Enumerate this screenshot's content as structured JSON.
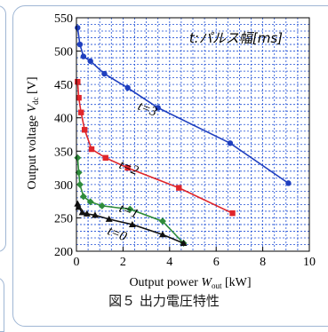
{
  "caption": "図５ 出力電圧特性",
  "chart_data": {
    "type": "line",
    "legend_title": "t:パルス幅[ms]",
    "xlabel_main": "Output power ",
    "xlabel_var": "W",
    "xlabel_sub": "out",
    "xlabel_unit": " [kW]",
    "ylabel_main": "Output voltage ",
    "ylabel_var": "V",
    "ylabel_sub": "dc",
    "ylabel_unit": " [V]",
    "xlim": [
      0,
      10
    ],
    "ylim": [
      200,
      550
    ],
    "xticks": [
      0,
      2,
      4,
      6,
      8,
      10
    ],
    "yticks": [
      200,
      250,
      300,
      350,
      400,
      450,
      500,
      550
    ],
    "grid": true,
    "series": [
      {
        "name": "t=3",
        "color": "#1f3fbf",
        "marker": "circle",
        "points": [
          [
            0.05,
            535
          ],
          [
            0.15,
            510
          ],
          [
            0.3,
            492
          ],
          [
            0.6,
            485
          ],
          [
            1.2,
            466
          ],
          [
            2.2,
            445
          ],
          [
            3.5,
            415
          ],
          [
            6.6,
            362
          ],
          [
            9.1,
            302
          ]
        ]
      },
      {
        "name": "t=2",
        "color": "#e0262b",
        "marker": "square",
        "points": [
          [
            0.05,
            454
          ],
          [
            0.1,
            430
          ],
          [
            0.2,
            408
          ],
          [
            0.35,
            382
          ],
          [
            0.65,
            353
          ],
          [
            1.25,
            340
          ],
          [
            2.2,
            325
          ],
          [
            4.4,
            295
          ],
          [
            6.7,
            257
          ]
        ]
      },
      {
        "name": "t=1",
        "color": "#2e8b3a",
        "marker": "diamond",
        "points": [
          [
            0.05,
            340
          ],
          [
            0.1,
            318
          ],
          [
            0.15,
            300
          ],
          [
            0.3,
            282
          ],
          [
            0.6,
            274
          ],
          [
            1.1,
            268
          ],
          [
            2.3,
            263
          ],
          [
            3.7,
            245
          ],
          [
            4.6,
            212
          ]
        ]
      },
      {
        "name": "t=0",
        "color": "#111111",
        "marker": "triangle",
        "points": [
          [
            0.05,
            271
          ],
          [
            0.1,
            266
          ],
          [
            0.25,
            258
          ],
          [
            0.45,
            256
          ],
          [
            0.8,
            254
          ],
          [
            1.4,
            248
          ],
          [
            2.4,
            240
          ],
          [
            3.7,
            225
          ],
          [
            4.6,
            212
          ]
        ]
      }
    ],
    "annotations": [
      {
        "text": "t=3",
        "x": 2.6,
        "y": 413,
        "rotate": 22
      },
      {
        "text": "t=2",
        "x": 1.8,
        "y": 325,
        "rotate": 22
      },
      {
        "text": "t=1",
        "x": 1.8,
        "y": 260,
        "rotate": 22
      },
      {
        "text": "t=0",
        "x": 1.3,
        "y": 226,
        "rotate": 22
      }
    ]
  }
}
